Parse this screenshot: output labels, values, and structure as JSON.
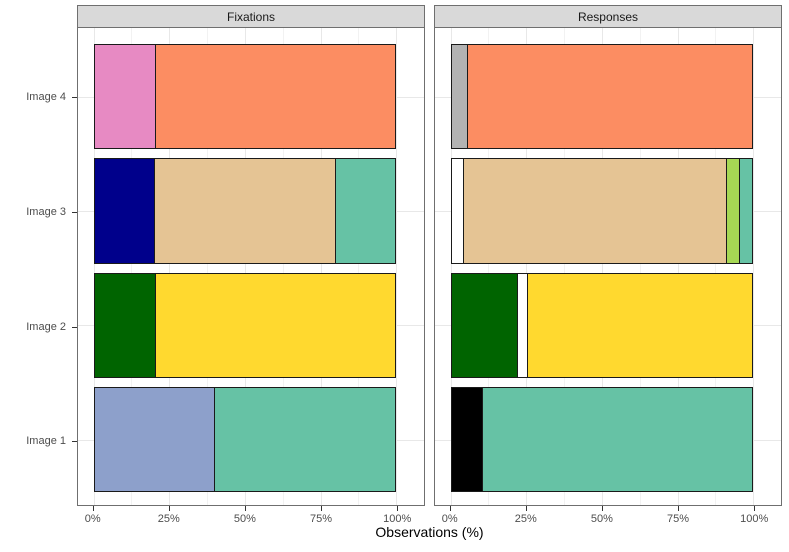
{
  "chart_data": {
    "type": "bar",
    "orientation": "horizontal",
    "stacked": true,
    "units": "percent",
    "xlabel": "Observations (%)",
    "xlim": [
      0,
      100
    ],
    "x_tick_values": [
      0,
      25,
      50,
      75,
      100
    ],
    "x_tick_labels": [
      "0%",
      "25%",
      "50%",
      "75%",
      "100%"
    ],
    "x_grid_values": [
      0,
      12.5,
      25,
      37.5,
      50,
      62.5,
      75,
      87.5,
      100
    ],
    "grid": true,
    "legend": "none",
    "y_categories": [
      "Image 4",
      "Image 3",
      "Image 2",
      "Image 1"
    ],
    "facets": [
      {
        "label": "Fixations",
        "rows": [
          {
            "category": "Image 4",
            "segments": [
              {
                "color": "#E78AC3",
                "value": 20
              },
              {
                "color": "#FC8D62",
                "value": 80
              }
            ]
          },
          {
            "category": "Image 3",
            "segments": [
              {
                "color": "#00008B",
                "value": 20
              },
              {
                "color": "#E5C494",
                "value": 60
              },
              {
                "color": "#66C2A5",
                "value": 20
              }
            ]
          },
          {
            "category": "Image 2",
            "segments": [
              {
                "color": "#006400",
                "value": 20
              },
              {
                "color": "#FFD92F",
                "value": 80
              }
            ]
          },
          {
            "category": "Image 1",
            "segments": [
              {
                "color": "#8DA0CB",
                "value": 40
              },
              {
                "color": "#66C2A5",
                "value": 60
              }
            ]
          }
        ]
      },
      {
        "label": "Responses",
        "rows": [
          {
            "category": "Image 4",
            "segments": [
              {
                "color": "#B3B3B3",
                "value": 5
              },
              {
                "color": "#FC8D62",
                "value": 95
              }
            ]
          },
          {
            "category": "Image 3",
            "segments": [
              {
                "color": "#FFFFFF",
                "value": 4
              },
              {
                "color": "#E5C494",
                "value": 88
              },
              {
                "color": "#A6D854",
                "value": 4
              },
              {
                "color": "#66C2A5",
                "value": 4
              }
            ]
          },
          {
            "category": "Image 2",
            "segments": [
              {
                "color": "#006400",
                "value": 22
              },
              {
                "color": "#FFFFFF",
                "value": 3
              },
              {
                "color": "#FFD92F",
                "value": 75
              }
            ]
          },
          {
            "category": "Image 1",
            "segments": [
              {
                "color": "#000000",
                "value": 10
              },
              {
                "color": "#66C2A5",
                "value": 90
              }
            ]
          }
        ]
      }
    ]
  },
  "style": {
    "background": "#FFFFFF",
    "strip_fill": "#D9D9D9",
    "panel_border": "#6F6F6F",
    "bar_border": "#1A1A1A",
    "grid_major": "#E8E8E8",
    "grid_minor": "#F2F2F2",
    "tick_color": "#333333",
    "tick_label_color": "#4D4D4D"
  }
}
